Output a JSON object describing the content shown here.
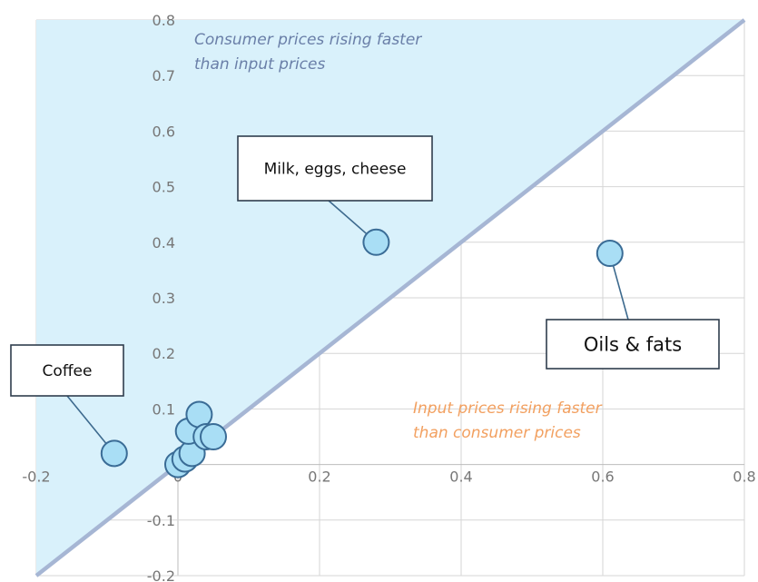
{
  "chart_data": {
    "type": "scatter",
    "title": "",
    "xlabel": "",
    "ylabel": "",
    "xlim": [
      -0.2,
      0.8
    ],
    "ylim": [
      -0.2,
      0.8
    ],
    "x_ticks": [
      "-0.2",
      "0",
      "0.2",
      "0.4",
      "0.6",
      "0.8"
    ],
    "y_ticks": [
      "-0.2",
      "-0.1",
      "0",
      "0.1",
      "0.2",
      "0.3",
      "0.4",
      "0.5",
      "0.6",
      "0.7",
      "0.8"
    ],
    "grid": true,
    "reference_line": "y = x",
    "colors": {
      "upper_region": "#d9f1fb",
      "diagonal": "#a6b6d4",
      "point_fill": "#a9def5",
      "point_stroke": "#3a6c96",
      "upper_label": "#6a7fa8",
      "lower_label": "#f2a060"
    },
    "regions": {
      "upper": [
        "Consumer prices rising faster",
        "than input prices"
      ],
      "lower": [
        "Input prices rising faster",
        "than consumer prices"
      ]
    },
    "points": [
      {
        "x": -0.09,
        "y": 0.02,
        "label": "Coffee"
      },
      {
        "x": 0.0,
        "y": 0.0
      },
      {
        "x": 0.01,
        "y": 0.01
      },
      {
        "x": 0.02,
        "y": 0.02
      },
      {
        "x": 0.015,
        "y": 0.06
      },
      {
        "x": 0.03,
        "y": 0.09
      },
      {
        "x": 0.04,
        "y": 0.05
      },
      {
        "x": 0.05,
        "y": 0.05
      },
      {
        "x": 0.28,
        "y": 0.4,
        "label": "Milk, eggs, cheese"
      },
      {
        "x": 0.61,
        "y": 0.38,
        "label": "Oils & fats"
      }
    ],
    "annotations": [
      "Coffee",
      "Milk, eggs, cheese",
      "Oils & fats"
    ]
  }
}
